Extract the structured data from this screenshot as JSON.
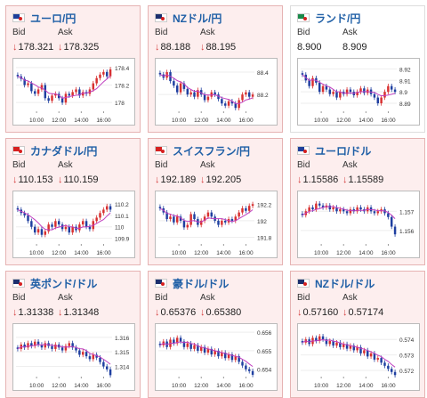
{
  "cards": [
    {
      "title": "ユーロ/円",
      "flag": "eu-jp",
      "bid_label": "Bid",
      "ask_label": "Ask",
      "bid": "178.321",
      "ask": "178.325",
      "arrow": "↓",
      "chart_data": {
        "type": "candlestick",
        "y_ticks": [
          "178.4",
          "178.2",
          "178"
        ],
        "ylim": [
          177.9,
          178.45
        ],
        "x_ticks": [
          "10:00",
          "12:00",
          "14:00",
          "16:00"
        ],
        "close": [
          178.3,
          178.27,
          178.2,
          178.22,
          178.13,
          178.1,
          178.15,
          178.2,
          178.05,
          178.02,
          178.08,
          178.1,
          178.05,
          178.0,
          178.1,
          178.08,
          178.12,
          178.15,
          178.08,
          178.12,
          178.1,
          178.15,
          178.22,
          178.28,
          178.32,
          178.35,
          178.3,
          178.38
        ]
      }
    },
    {
      "title": "NZドル/円",
      "flag": "nz-jp",
      "bid_label": "Bid",
      "ask_label": "Ask",
      "bid": "88.188",
      "ask": "88.195",
      "arrow": "↓",
      "chart_data": {
        "type": "candlestick",
        "y_ticks": [
          "88.4",
          "88.2"
        ],
        "ylim": [
          88.05,
          88.48
        ],
        "x_ticks": [
          "10:00",
          "12:00",
          "14:00",
          "16:00"
        ],
        "close": [
          88.38,
          88.35,
          88.4,
          88.32,
          88.28,
          88.22,
          88.3,
          88.25,
          88.2,
          88.22,
          88.18,
          88.24,
          88.2,
          88.15,
          88.18,
          88.22,
          88.2,
          88.16,
          88.12,
          88.1,
          88.14,
          88.12,
          88.08,
          88.15,
          88.2,
          88.22,
          88.18,
          88.2
        ]
      }
    },
    {
      "title": "ランド/円",
      "flag": "za-jp",
      "bid_label": "Bid",
      "ask_label": "Ask",
      "bid": "8.900",
      "ask": "8.909",
      "arrow": "",
      "chart_data": {
        "type": "candlestick",
        "y_ticks": [
          "8.92",
          "8.91",
          "8.9",
          "8.89"
        ],
        "ylim": [
          8.883,
          8.925
        ],
        "x_ticks": [
          "10:00",
          "12:00",
          "14:00",
          "16:00"
        ],
        "close": [
          8.915,
          8.91,
          8.905,
          8.912,
          8.908,
          8.9,
          8.905,
          8.902,
          8.898,
          8.9,
          8.895,
          8.9,
          8.898,
          8.902,
          8.9,
          8.897,
          8.9,
          8.903,
          8.899,
          8.902,
          8.898,
          8.895,
          8.89,
          8.895,
          8.9,
          8.905,
          8.902,
          8.9
        ]
      }
    },
    {
      "title": "カナダドル/円",
      "flag": "ca-jp",
      "bid_label": "Bid",
      "ask_label": "Ask",
      "bid": "110.153",
      "ask": "110.159",
      "arrow": "↓",
      "chart_data": {
        "type": "candlestick",
        "y_ticks": [
          "110.2",
          "110.1",
          "110",
          "109.9"
        ],
        "ylim": [
          109.85,
          110.27
        ],
        "x_ticks": [
          "10:00",
          "12:00",
          "14:00",
          "16:00"
        ],
        "close": [
          110.15,
          110.12,
          110.1,
          110.05,
          110.0,
          109.95,
          109.98,
          109.93,
          109.96,
          110.02,
          110.0,
          110.05,
          110.02,
          109.98,
          110.0,
          109.95,
          110.0,
          109.97,
          110.02,
          110.05,
          110.0,
          109.98,
          110.05,
          110.08,
          110.12,
          110.15,
          110.18,
          110.15
        ]
      }
    },
    {
      "title": "スイスフラン/円",
      "flag": "ch-jp",
      "bid_label": "Bid",
      "ask_label": "Ask",
      "bid": "192.189",
      "ask": "192.205",
      "arrow": "↓",
      "chart_data": {
        "type": "candlestick",
        "y_ticks": [
          "192.2",
          "192",
          "191.8"
        ],
        "ylim": [
          191.72,
          192.3
        ],
        "x_ticks": [
          "10:00",
          "12:00",
          "14:00",
          "16:00"
        ],
        "close": [
          192.15,
          192.1,
          192.02,
          192.05,
          191.98,
          192.05,
          192.0,
          191.92,
          191.95,
          192.08,
          192.02,
          191.95,
          192.0,
          192.05,
          192.1,
          192.05,
          192.0,
          191.95,
          192.0,
          191.98,
          192.02,
          192.0,
          192.05,
          192.1,
          192.15,
          192.12,
          192.18,
          192.2
        ]
      }
    },
    {
      "title": "ユーロ/ドル",
      "flag": "eu-us",
      "bid_label": "Bid",
      "ask_label": "Ask",
      "bid": "1.15586",
      "ask": "1.15589",
      "arrow": "↓",
      "chart_data": {
        "type": "candlestick",
        "y_ticks": [
          "1.157",
          "1.156"
        ],
        "ylim": [
          1.1553,
          1.1578
        ],
        "x_ticks": [
          "10:00",
          "12:00",
          "14:00",
          "16:00"
        ],
        "close": [
          1.1568,
          1.157,
          1.1572,
          1.1571,
          1.1574,
          1.1573,
          1.1572,
          1.1573,
          1.1571,
          1.1572,
          1.157,
          1.1571,
          1.157,
          1.1569,
          1.1571,
          1.157,
          1.1572,
          1.1571,
          1.157,
          1.1572,
          1.157,
          1.1569,
          1.157,
          1.1571,
          1.1569,
          1.1567,
          1.1562,
          1.1558
        ]
      }
    },
    {
      "title": "英ポンド/ドル",
      "flag": "gb-us",
      "bid_label": "Bid",
      "ask_label": "Ask",
      "bid": "1.31338",
      "ask": "1.31348",
      "arrow": "↓",
      "chart_data": {
        "type": "candlestick",
        "y_ticks": [
          "1.316",
          "1.315",
          "1.314"
        ],
        "ylim": [
          1.3133,
          1.3166
        ],
        "x_ticks": [
          "10:00",
          "12:00",
          "14:00",
          "16:00"
        ],
        "close": [
          1.3152,
          1.3155,
          1.3153,
          1.3156,
          1.3154,
          1.3157,
          1.3155,
          1.3153,
          1.3156,
          1.3154,
          1.3152,
          1.3155,
          1.3153,
          1.3151,
          1.3154,
          1.3156,
          1.3153,
          1.3151,
          1.3148,
          1.315,
          1.3147,
          1.3145,
          1.3148,
          1.3146,
          1.3143,
          1.314,
          1.3138,
          1.3134
        ]
      }
    },
    {
      "title": "豪ドル/ドル",
      "flag": "au-us",
      "bid_label": "Bid",
      "ask_label": "Ask",
      "bid": "0.65376",
      "ask": "0.65380",
      "arrow": "↓",
      "chart_data": {
        "type": "candlestick",
        "y_ticks": [
          "0.656",
          "0.655",
          "0.654"
        ],
        "ylim": [
          0.6536,
          0.6562
        ],
        "x_ticks": [
          "10:00",
          "12:00",
          "14:00",
          "16:00"
        ],
        "close": [
          0.6553,
          0.6555,
          0.6552,
          0.6556,
          0.6554,
          0.6557,
          0.6555,
          0.6552,
          0.6554,
          0.6551,
          0.6553,
          0.655,
          0.6552,
          0.6549,
          0.6551,
          0.6548,
          0.655,
          0.6547,
          0.6549,
          0.6546,
          0.6548,
          0.6545,
          0.6547,
          0.6544,
          0.6542,
          0.654,
          0.6539,
          0.6537
        ]
      }
    },
    {
      "title": "NZドル/ドル",
      "flag": "nz-us",
      "bid_label": "Bid",
      "ask_label": "Ask",
      "bid": "0.57160",
      "ask": "0.57174",
      "arrow": "↓",
      "chart_data": {
        "type": "candlestick",
        "y_ticks": [
          "0.574",
          "0.573",
          "0.572"
        ],
        "ylim": [
          0.5716,
          0.5747
        ],
        "x_ticks": [
          "10:00",
          "12:00",
          "14:00",
          "16:00"
        ],
        "close": [
          0.5738,
          0.574,
          0.5737,
          0.5741,
          0.5739,
          0.5742,
          0.574,
          0.5737,
          0.5739,
          0.5736,
          0.5738,
          0.5735,
          0.5737,
          0.5734,
          0.5736,
          0.5733,
          0.5735,
          0.5731,
          0.5733,
          0.5729,
          0.5731,
          0.5727,
          0.5728,
          0.5725,
          0.5723,
          0.5721,
          0.5719,
          0.5717
        ]
      }
    }
  ]
}
